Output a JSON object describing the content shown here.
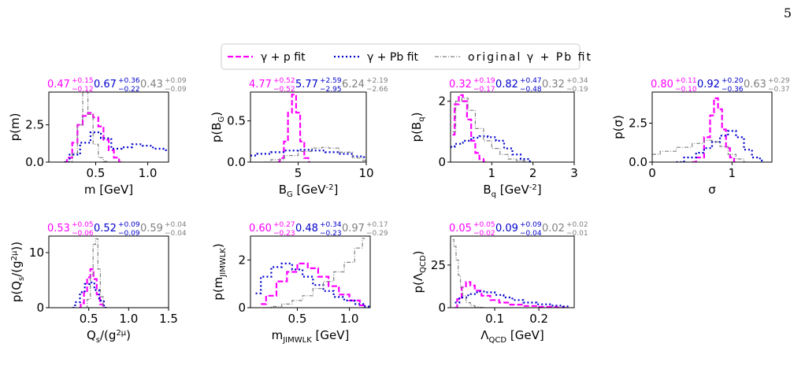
{
  "page_number": "5",
  "legend": {
    "entries": [
      {
        "label": "γ + p fit",
        "color": "#ff00ff",
        "dash": "7,3"
      },
      {
        "label": "γ + Pb fit",
        "color": "#0000cc",
        "dash": "2,3"
      },
      {
        "label": "original γ + Pb fit",
        "color": "#808080",
        "dash": "5,2,1,2"
      }
    ]
  },
  "colors": {
    "gamma_p": "#ff00ff",
    "gamma_pb": "#0000cc",
    "original": "#808080"
  },
  "chart_data": [
    {
      "type": "line",
      "xlabel": "m [GeV]",
      "ylabel": "p(m)",
      "xlim": [
        0.05,
        1.2
      ],
      "ylim": [
        0,
        4.7
      ],
      "xticks": [
        0.5,
        1.0
      ],
      "xticklabels": [
        "0.5",
        "1.0"
      ],
      "yticks": [
        0.0,
        2.5
      ],
      "yticklabels": [
        "0.0",
        "2.5"
      ],
      "annotations": [
        {
          "value": "0.47",
          "plus": "+0.15",
          "minus": "−0.12",
          "color": "#ff00ff"
        },
        {
          "value": "0.67",
          "plus": "+0.36",
          "minus": "−0.22",
          "color": "#0000cc"
        },
        {
          "value": "0.43",
          "plus": "+0.09",
          "minus": "−0.09",
          "color": "#808080"
        }
      ],
      "series": [
        {
          "name": "γ + p fit",
          "x": [
            0.2,
            0.25,
            0.3,
            0.35,
            0.4,
            0.45,
            0.5,
            0.55,
            0.6,
            0.65,
            0.7,
            0.75
          ],
          "y": [
            0,
            0.3,
            1.3,
            2.5,
            3.1,
            3.3,
            3.0,
            2.4,
            1.5,
            0.8,
            0.3,
            0
          ]
        },
        {
          "name": "γ + Pb fit",
          "x": [
            0.2,
            0.3,
            0.4,
            0.5,
            0.6,
            0.7,
            0.8,
            0.9,
            1.0,
            1.1,
            1.2
          ],
          "y": [
            0,
            0.5,
            1.3,
            2.0,
            1.6,
            0.9,
            1.0,
            1.2,
            1.1,
            0.9,
            0.8
          ]
        },
        {
          "name": "original γ + Pb fit",
          "x": [
            0.25,
            0.3,
            0.35,
            0.4,
            0.45,
            0.5,
            0.55,
            0.6,
            0.65
          ],
          "y": [
            0,
            0.6,
            2.5,
            4.7,
            3.2,
            1.2,
            0.3,
            0.05,
            0
          ]
        }
      ]
    },
    {
      "type": "line",
      "xlabel": "B_G [GeV^-2]",
      "ylabel": "p(B_G)",
      "xlim": [
        1.5,
        10
      ],
      "ylim": [
        0,
        0.85
      ],
      "xticks": [
        5,
        10
      ],
      "xticklabels": [
        "5",
        "10"
      ],
      "yticks": [
        0.0,
        0.5
      ],
      "yticklabels": [
        "0.0",
        "0.5"
      ],
      "annotations": [
        {
          "value": "4.77",
          "plus": "+0.52",
          "minus": "−0.52",
          "color": "#ff00ff"
        },
        {
          "value": "5.77",
          "plus": "+2.59",
          "minus": "−2.95",
          "color": "#0000cc"
        },
        {
          "value": "6.24",
          "plus": "+2.19",
          "minus": "−2.66",
          "color": "#808080"
        }
      ],
      "series": [
        {
          "name": "γ + p fit",
          "x": [
            3.5,
            3.8,
            4.1,
            4.4,
            4.7,
            5.0,
            5.3,
            5.6,
            5.9
          ],
          "y": [
            0,
            0.05,
            0.25,
            0.6,
            0.82,
            0.6,
            0.25,
            0.05,
            0
          ]
        },
        {
          "name": "γ + Pb fit",
          "x": [
            1.5,
            2.5,
            3.5,
            4.5,
            5.5,
            6.5,
            7.5,
            8.5,
            9.5,
            10
          ],
          "y": [
            0.08,
            0.1,
            0.12,
            0.14,
            0.15,
            0.14,
            0.12,
            0.1,
            0.07,
            0.06
          ]
        },
        {
          "name": "original γ + Pb fit",
          "x": [
            2.5,
            3.5,
            4.5,
            5.5,
            6.5,
            7.0,
            7.5,
            8.5,
            9.5,
            10
          ],
          "y": [
            0,
            0.03,
            0.08,
            0.13,
            0.17,
            0.18,
            0.17,
            0.12,
            0.05,
            0.02
          ]
        }
      ]
    },
    {
      "type": "line",
      "xlabel": "B_q [GeV^-2]",
      "ylabel": "p(B_q)",
      "xlim": [
        0,
        3
      ],
      "ylim": [
        0,
        2.3
      ],
      "xticks": [
        1,
        2,
        3
      ],
      "xticklabels": [
        "1",
        "2",
        "3"
      ],
      "yticks": [
        0,
        2
      ],
      "yticklabels": [
        "0",
        "2"
      ],
      "annotations": [
        {
          "value": "0.32",
          "plus": "+0.19",
          "minus": "−0.17",
          "color": "#ff00ff"
        },
        {
          "value": "0.82",
          "plus": "+0.47",
          "minus": "−0.48",
          "color": "#0000cc"
        },
        {
          "value": "0.32",
          "plus": "+0.34",
          "minus": "−0.19",
          "color": "#808080"
        }
      ],
      "series": [
        {
          "name": "γ + p fit",
          "x": [
            0.05,
            0.15,
            0.25,
            0.35,
            0.45,
            0.55,
            0.65,
            0.75,
            0.85
          ],
          "y": [
            0.9,
            1.9,
            2.2,
            2.0,
            1.4,
            0.7,
            0.3,
            0.1,
            0
          ]
        },
        {
          "name": "γ + Pb fit",
          "x": [
            0,
            0.2,
            0.4,
            0.6,
            0.8,
            1.0,
            1.2,
            1.4,
            1.6,
            1.8,
            2.0
          ],
          "y": [
            0.5,
            0.6,
            0.7,
            0.8,
            0.85,
            0.82,
            0.7,
            0.45,
            0.25,
            0.1,
            0.03
          ]
        },
        {
          "name": "original γ + Pb fit",
          "x": [
            0.05,
            0.2,
            0.35,
            0.5,
            0.7,
            0.9,
            1.1,
            1.3,
            1.5,
            1.7,
            1.9
          ],
          "y": [
            1.0,
            2.0,
            2.1,
            1.7,
            1.1,
            0.7,
            0.45,
            0.25,
            0.1,
            0.05,
            0
          ]
        }
      ]
    },
    {
      "type": "line",
      "xlabel": "σ",
      "ylabel": "p(σ)",
      "xlim": [
        0,
        1.5
      ],
      "ylim": [
        0,
        4.5
      ],
      "xticks": [
        0,
        1
      ],
      "xticklabels": [
        "0",
        "1"
      ],
      "yticks": [
        0.0,
        2.5
      ],
      "yticklabels": [
        "0.0",
        "2.5"
      ],
      "annotations": [
        {
          "value": "0.80",
          "plus": "+0.11",
          "minus": "−0.10",
          "color": "#ff00ff"
        },
        {
          "value": "0.92",
          "plus": "+0.20",
          "minus": "−0.36",
          "color": "#0000cc"
        },
        {
          "value": "0.63",
          "plus": "+0.29",
          "minus": "−0.37",
          "color": "#808080"
        }
      ],
      "series": [
        {
          "name": "γ + p fit",
          "x": [
            0.5,
            0.6,
            0.7,
            0.75,
            0.8,
            0.85,
            0.9,
            0.95,
            1.0,
            1.05
          ],
          "y": [
            0,
            0.3,
            1.6,
            3.0,
            4.1,
            3.4,
            2.1,
            0.9,
            0.3,
            0
          ]
        },
        {
          "name": "γ + Pb fit",
          "x": [
            0.3,
            0.5,
            0.6,
            0.7,
            0.8,
            0.9,
            1.0,
            1.1,
            1.2,
            1.3,
            1.4
          ],
          "y": [
            0,
            0.3,
            0.6,
            0.9,
            1.3,
            1.7,
            2.0,
            1.6,
            0.8,
            0.3,
            0.1
          ]
        },
        {
          "name": "original γ + Pb fit",
          "x": [
            0,
            0.2,
            0.4,
            0.6,
            0.7,
            0.8,
            0.9,
            1.0,
            1.1,
            1.2
          ],
          "y": [
            0.5,
            0.7,
            0.95,
            1.2,
            1.4,
            1.3,
            1.0,
            0.5,
            0.2,
            0
          ]
        }
      ]
    },
    {
      "type": "line",
      "xlabel": "Q_s/(g^2μ)",
      "ylabel": "p(Q_s/(g^2μ))",
      "xlim": [
        0,
        1.5
      ],
      "ylim": [
        0,
        13
      ],
      "xticks": [
        0.5,
        1.0,
        1.5
      ],
      "xticklabels": [
        "0.5",
        "1.0",
        "1.5"
      ],
      "yticks": [
        0,
        10
      ],
      "yticklabels": [
        "0",
        "10"
      ],
      "annotations": [
        {
          "value": "0.53",
          "plus": "+0.05",
          "minus": "−0.06",
          "color": "#ff00ff"
        },
        {
          "value": "0.52",
          "plus": "+0.09",
          "minus": "−0.09",
          "color": "#0000cc"
        },
        {
          "value": "0.59",
          "plus": "+0.04",
          "minus": "−0.04",
          "color": "#808080"
        }
      ],
      "series": [
        {
          "name": "γ + p fit",
          "x": [
            0.38,
            0.42,
            0.46,
            0.5,
            0.54,
            0.58,
            0.62,
            0.66,
            0.7
          ],
          "y": [
            0,
            0.8,
            2.8,
            5.5,
            7.0,
            5.2,
            2.4,
            0.6,
            0
          ]
        },
        {
          "name": "γ + Pb fit",
          "x": [
            0.3,
            0.36,
            0.42,
            0.48,
            0.54,
            0.6,
            0.66,
            0.72
          ],
          "y": [
            0,
            1.0,
            2.8,
            4.3,
            4.6,
            3.2,
            1.3,
            0
          ]
        },
        {
          "name": "original γ + Pb fit",
          "x": [
            0.46,
            0.5,
            0.54,
            0.57,
            0.6,
            0.63,
            0.66,
            0.7
          ],
          "y": [
            0,
            1.5,
            6.0,
            11.5,
            12.5,
            7.0,
            2.0,
            0
          ]
        }
      ]
    },
    {
      "type": "line",
      "xlabel": "m_JIMWLK [GeV]",
      "ylabel": "p(m_JIMWLK)",
      "xlim": [
        0.05,
        1.2
      ],
      "ylim": [
        0,
        3.0
      ],
      "xticks": [
        0.5,
        1.0
      ],
      "xticklabels": [
        "0.5",
        "1.0"
      ],
      "yticks": [
        0,
        2
      ],
      "yticklabels": [
        "0",
        "2"
      ],
      "annotations": [
        {
          "value": "0.60",
          "plus": "+0.27",
          "minus": "−0.23",
          "color": "#ff00ff"
        },
        {
          "value": "0.48",
          "plus": "+0.34",
          "minus": "−0.23",
          "color": "#0000cc"
        },
        {
          "value": "0.97",
          "plus": "+0.17",
          "minus": "−0.29",
          "color": "#808080"
        }
      ],
      "series": [
        {
          "name": "γ + p fit",
          "x": [
            0.15,
            0.25,
            0.35,
            0.45,
            0.55,
            0.65,
            0.75,
            0.85,
            0.95,
            1.05,
            1.15
          ],
          "y": [
            0.15,
            0.5,
            1.1,
            1.5,
            1.85,
            1.65,
            1.3,
            0.9,
            0.55,
            0.3,
            0.1
          ]
        },
        {
          "name": "γ + Pb fit",
          "x": [
            0.1,
            0.2,
            0.3,
            0.4,
            0.5,
            0.6,
            0.7,
            0.8,
            0.9,
            1.0,
            1.1,
            1.2
          ],
          "y": [
            0.6,
            1.3,
            1.7,
            1.85,
            1.6,
            1.3,
            0.95,
            0.7,
            0.45,
            0.3,
            0.15,
            0.05
          ]
        },
        {
          "name": "original γ + Pb fit",
          "x": [
            0.2,
            0.3,
            0.4,
            0.5,
            0.6,
            0.7,
            0.8,
            0.9,
            1.0,
            1.1,
            1.15
          ],
          "y": [
            0,
            0.05,
            0.15,
            0.3,
            0.5,
            0.8,
            1.1,
            1.5,
            1.9,
            2.5,
            2.9
          ]
        }
      ]
    },
    {
      "type": "line",
      "xlabel": "Λ_QCD [GeV]",
      "ylabel": "p(Λ_QCD)",
      "xlim": [
        0,
        0.28
      ],
      "ylim": [
        0,
        42
      ],
      "xticks": [
        0.1,
        0.2
      ],
      "xticklabels": [
        "0.1",
        "0.2"
      ],
      "yticks": [
        0,
        25
      ],
      "yticklabels": [
        "0",
        "25"
      ],
      "annotations": [
        {
          "value": "0.05",
          "plus": "+0.05",
          "minus": "−0.02",
          "color": "#ff00ff"
        },
        {
          "value": "0.09",
          "plus": "+0.09",
          "minus": "−0.04",
          "color": "#0000cc"
        },
        {
          "value": "0.02",
          "plus": "+0.02",
          "minus": "−0.01",
          "color": "#808080"
        }
      ],
      "series": [
        {
          "name": "γ + p fit",
          "x": [
            0.01,
            0.02,
            0.03,
            0.04,
            0.05,
            0.06,
            0.08,
            0.1,
            0.12,
            0.15,
            0.18,
            0.22,
            0.26
          ],
          "y": [
            0,
            5,
            12,
            15,
            13,
            10,
            7,
            4.5,
            3,
            1.8,
            1,
            0.5,
            0.2
          ]
        },
        {
          "name": "γ + Pb fit",
          "x": [
            0.01,
            0.03,
            0.05,
            0.07,
            0.09,
            0.11,
            0.13,
            0.15,
            0.18,
            0.21,
            0.24,
            0.27
          ],
          "y": [
            3,
            6,
            8,
            9.5,
            9,
            7.5,
            6,
            4.5,
            3,
            2,
            1.2,
            0.8
          ]
        },
        {
          "name": "original γ + Pb fit",
          "x": [
            0.005,
            0.01,
            0.015,
            0.02,
            0.025,
            0.03,
            0.04,
            0.05,
            0.06,
            0.07,
            0.08
          ],
          "y": [
            40,
            36,
            28,
            19,
            12,
            7,
            3,
            1.2,
            0.5,
            0.2,
            0
          ]
        }
      ]
    }
  ]
}
